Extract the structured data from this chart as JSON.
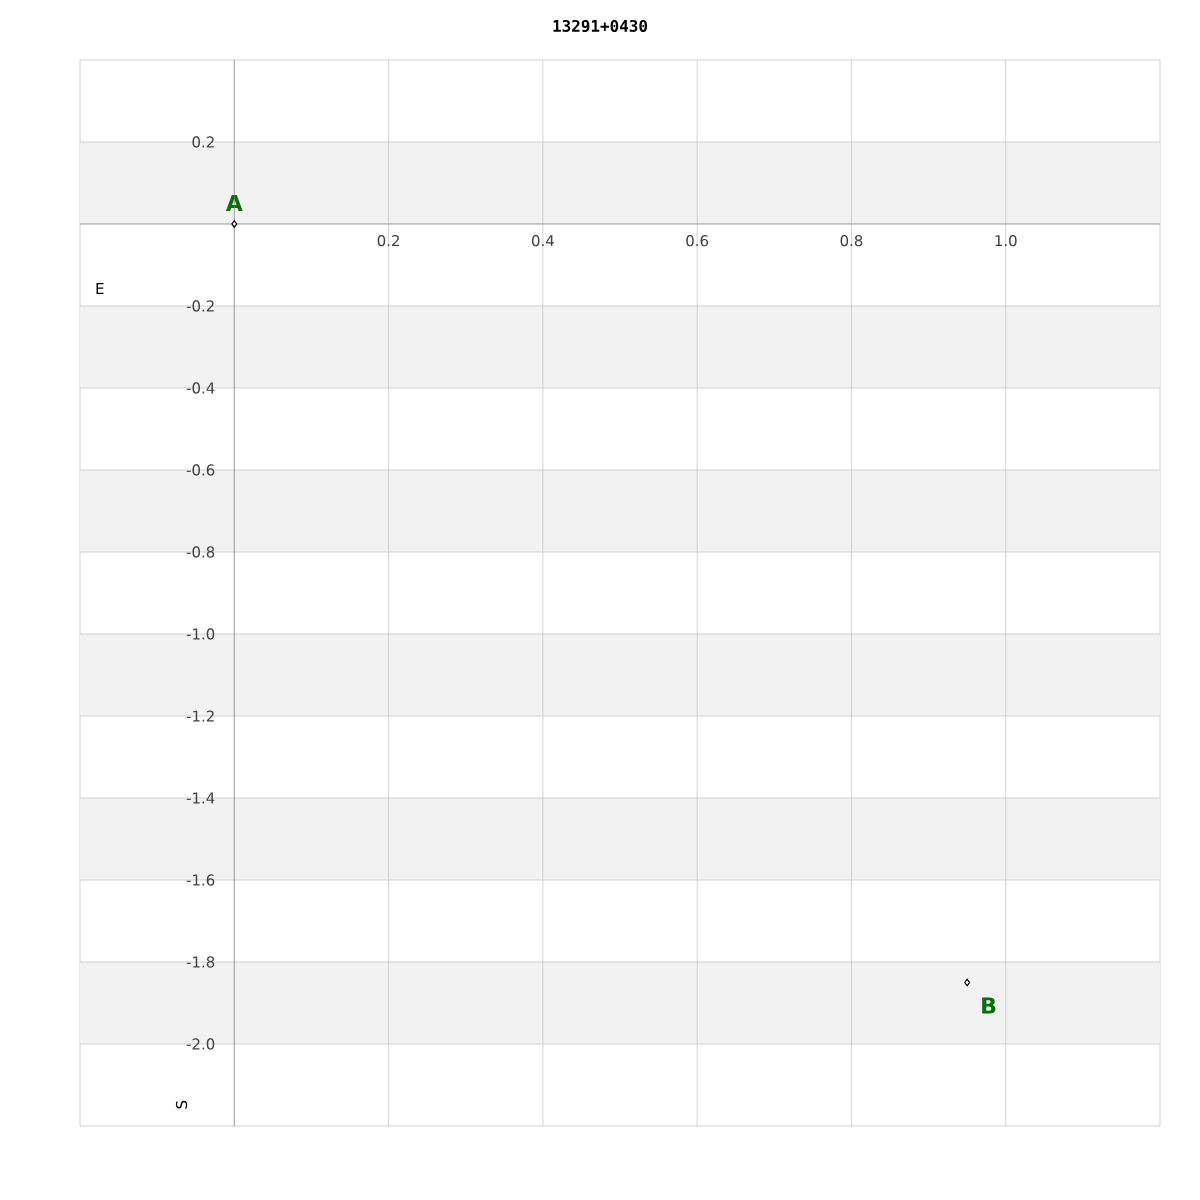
{
  "chart_data": {
    "type": "scatter",
    "title": "13291+0430",
    "xlabel": "E",
    "ylabel": "S",
    "x": [
      0,
      0.95
    ],
    "values": [
      0,
      -1.85
    ],
    "color": "#000000",
    "marker": "diamond",
    "xlim": [
      -0.2,
      1.2
    ],
    "ylim": [
      -2.2,
      0.4
    ],
    "xticks": [
      0.2,
      0.4,
      0.6,
      0.8,
      {
        "value": 1.0,
        "label": "1.0"
      }
    ],
    "yticks": [
      0.2,
      -0.2,
      -0.4,
      -0.6,
      -0.8,
      {
        "value": -1.0,
        "label": "-1.0"
      },
      -1.2,
      -1.4,
      -1.6,
      -1.8,
      {
        "value": -2.0,
        "label": "-2.0"
      }
    ],
    "grid": true,
    "bands": [
      {
        "axis": "y",
        "from": 0,
        "to": 0.2,
        "color": "#f2f2f2"
      },
      {
        "axis": "y",
        "from": -0.2,
        "to": -0.4,
        "color": "#f2f2f2"
      },
      {
        "axis": "y",
        "from": -0.6,
        "to": -0.8,
        "color": "#f2f2f2"
      },
      {
        "axis": "y",
        "from": -1.0,
        "to": -1.2,
        "color": "#f2f2f2"
      },
      {
        "axis": "y",
        "from": -1.4,
        "to": -1.6,
        "color": "#f2f2f2"
      },
      {
        "axis": "y",
        "from": -1.8,
        "to": -2.0,
        "color": "#f2f2f2"
      }
    ],
    "annotations": [
      {
        "text": "A",
        "x": 0,
        "y": 0
      },
      {
        "text": "B",
        "x": 0.95,
        "y": -1.85
      }
    ]
  }
}
